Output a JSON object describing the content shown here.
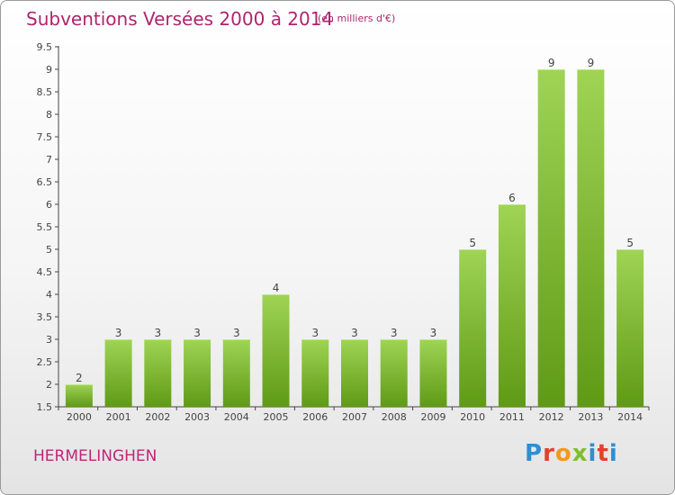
{
  "title": "Subventions Versées 2000 à 2014",
  "subtitle": "(en milliers d'€)",
  "commune": "HERMELINGHEN",
  "logo": {
    "text": "Proxiti",
    "letters": [
      "P",
      "r",
      "o",
      "x",
      "i",
      "t",
      "i"
    ]
  },
  "colors": {
    "title": "#b0246e",
    "bar_top": "#9fd455",
    "bar_bottom": "#5f9a15",
    "axis": "#444444"
  },
  "chart_data": {
    "type": "bar",
    "title": "Subventions Versées 2000 à 2014",
    "subtitle": "(en milliers d'€)",
    "xlabel": "",
    "ylabel": "",
    "categories": [
      "2000",
      "2001",
      "2002",
      "2003",
      "2004",
      "2005",
      "2006",
      "2007",
      "2008",
      "2009",
      "2010",
      "2011",
      "2012",
      "2013",
      "2014"
    ],
    "values": [
      2,
      3,
      3,
      3,
      3,
      4,
      3,
      3,
      3,
      3,
      5,
      6,
      9,
      9,
      5
    ],
    "data_labels": [
      "2",
      "3",
      "3",
      "3",
      "3",
      "4",
      "3",
      "3",
      "3",
      "3",
      "5",
      "6",
      "9",
      "9",
      "5"
    ],
    "ylim": [
      1.5,
      9.5
    ],
    "yticks": [
      "1.5",
      "2",
      "2.5",
      "3",
      "3.5",
      "4",
      "4.5",
      "5",
      "5.5",
      "6",
      "6.5",
      "7",
      "7.5",
      "8",
      "8.5",
      "9",
      "9.5"
    ],
    "grid": false,
    "legend": "none"
  }
}
